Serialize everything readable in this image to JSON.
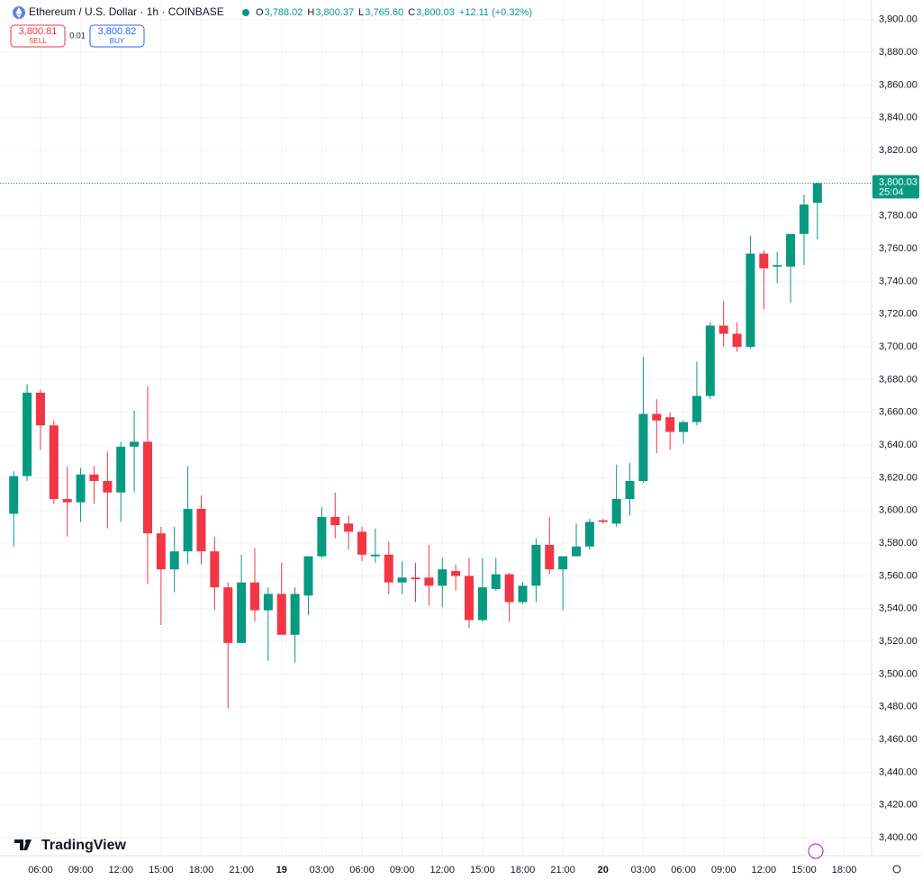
{
  "header": {
    "symbol": "Ethereum / U.S. Dollar · 1h · COINBASE",
    "ohlc": [
      {
        "key": "O",
        "value": "3,788.02"
      },
      {
        "key": "H",
        "value": "3,800.37"
      },
      {
        "key": "L",
        "value": "3,765.60"
      },
      {
        "key": "C",
        "value": "3,800.03"
      }
    ],
    "change": "+12.11 (+0.32%)",
    "sell": {
      "price": "3,800.81",
      "label": "SELL"
    },
    "spread": "0.01",
    "buy": {
      "price": "3,800.82",
      "label": "BUY"
    }
  },
  "branding": "TradingView",
  "chart_data": {
    "type": "candlestick",
    "categories": [
      null,
      null,
      "06:00",
      null,
      null,
      "09:00",
      null,
      null,
      "12:00",
      null,
      null,
      "15:00",
      null,
      null,
      "18:00",
      null,
      null,
      "21:00",
      null,
      null,
      "19",
      null,
      null,
      "03:00",
      null,
      null,
      "06:00",
      null,
      null,
      "09:00",
      null,
      null,
      "12:00",
      null,
      null,
      "15:00",
      null,
      null,
      "18:00",
      null,
      null,
      "21:00",
      null,
      null,
      "20",
      null,
      null,
      "03:00",
      null,
      null,
      "06:00",
      null,
      null,
      "09:00",
      null,
      null,
      "12:00",
      null,
      null,
      "15:00",
      null,
      null,
      "18:00"
    ],
    "open": [
      3598,
      3621,
      3672,
      3652,
      3607,
      3605,
      3622,
      3618,
      3611,
      3639,
      3642,
      3586,
      3564,
      3575,
      3601,
      3575,
      3553,
      3519,
      3556,
      3539,
      3549,
      3524,
      3548,
      3572,
      3596,
      3592,
      3587,
      3572,
      3573,
      3556,
      3559,
      3559,
      3554,
      3563,
      3560,
      3533,
      3552,
      3561,
      3544,
      3554,
      3579,
      3564,
      3572,
      3578,
      3594,
      3592,
      3607,
      3618,
      3659,
      3657,
      3648,
      3654,
      3670,
      3713,
      3708,
      3700,
      3757,
      3749,
      3749,
      3769,
      3788.02,
      null,
      null
    ],
    "high": [
      3624,
      3677,
      3674,
      3655,
      3627,
      3626,
      3627,
      3636,
      3642,
      3661,
      3676,
      3590,
      3590,
      3627,
      3609,
      3584,
      3556,
      3573,
      3577,
      3553,
      3568,
      3553,
      3572,
      3602,
      3611,
      3597,
      3590,
      3589,
      3581,
      3569,
      3568,
      3579,
      3571,
      3567,
      3571,
      3571,
      3571,
      3562,
      3556,
      3583,
      3596,
      3567,
      3592,
      3595,
      3595,
      3628,
      3629,
      3694,
      3668,
      3660,
      3655,
      3691,
      3715,
      3728,
      3715,
      3768,
      3759,
      3758,
      3769,
      3793,
      3800.37,
      null,
      null
    ],
    "low": [
      3578,
      3618,
      3637,
      3604,
      3584,
      3593,
      3604,
      3589,
      3593,
      3611,
      3555,
      3530,
      3550,
      3567,
      3567,
      3539,
      3479,
      3519,
      3532,
      3508,
      3524,
      3507,
      3536,
      3571,
      3583,
      3576,
      3569,
      3568,
      3549,
      3549,
      3544,
      3542,
      3541,
      3551,
      3528,
      3532,
      3551,
      3532,
      3543,
      3544,
      3561,
      3539,
      3572,
      3576,
      3592,
      3590,
      3597,
      3617,
      3635,
      3637,
      3641,
      3652,
      3668,
      3700,
      3697,
      3699,
      3723,
      3739,
      3727,
      3750,
      3765.6,
      null,
      null
    ],
    "close": [
      3621,
      3672,
      3652,
      3607,
      3605,
      3622,
      3618,
      3611,
      3639,
      3642,
      3586,
      3564,
      3575,
      3601,
      3575,
      3553,
      3519,
      3556,
      3539,
      3549,
      3524,
      3549,
      3572,
      3596,
      3591,
      3587,
      3573,
      3573,
      3556,
      3559,
      3558,
      3554,
      3564,
      3560,
      3533,
      3553,
      3561,
      3544,
      3554,
      3579,
      3564,
      3572,
      3578,
      3593,
      3593,
      3607,
      3618,
      3659,
      3655,
      3648,
      3654,
      3670,
      3713,
      3708,
      3700,
      3757,
      3748,
      3750,
      3769,
      3787,
      3800.03,
      null,
      null
    ],
    "up_color": "#089981",
    "down_color": "#f23645",
    "grid": true,
    "ylim": [
      3389,
      3912
    ],
    "yticks": [
      {
        "value": 3400,
        "label": "3,400.00"
      },
      {
        "value": 3420,
        "label": "3,420.00"
      },
      {
        "value": 3440,
        "label": "3,440.00"
      },
      {
        "value": 3460,
        "label": "3,460.00"
      },
      {
        "value": 3480,
        "label": "3,480.00"
      },
      {
        "value": 3500,
        "label": "3,500.00"
      },
      {
        "value": 3520,
        "label": "3,520.00"
      },
      {
        "value": 3540,
        "label": "3,540.00"
      },
      {
        "value": 3560,
        "label": "3,560.00"
      },
      {
        "value": 3580,
        "label": "3,580.00"
      },
      {
        "value": 3600,
        "label": "3,600.00"
      },
      {
        "value": 3620,
        "label": "3,620.00"
      },
      {
        "value": 3640,
        "label": "3,640.00"
      },
      {
        "value": 3660,
        "label": "3,660.00"
      },
      {
        "value": 3680,
        "label": "3,680.00"
      },
      {
        "value": 3700,
        "label": "3,700.00"
      },
      {
        "value": 3720,
        "label": "3,720.00"
      },
      {
        "value": 3740,
        "label": "3,740.00"
      },
      {
        "value": 3760,
        "label": "3,760.00"
      },
      {
        "value": 3780,
        "label": "3,780.00"
      },
      {
        "value": 3800,
        "label": "3,800.00"
      },
      {
        "value": 3820,
        "label": "3,820.00"
      },
      {
        "value": 3840,
        "label": "3,840.00"
      },
      {
        "value": 3860,
        "label": "3,860.00"
      },
      {
        "value": 3880,
        "label": "3,880.00"
      },
      {
        "value": 3900,
        "label": "3,900.00"
      }
    ],
    "last_price": {
      "value": 3800.03,
      "label": "3,800.03",
      "countdown": "25:04"
    }
  }
}
